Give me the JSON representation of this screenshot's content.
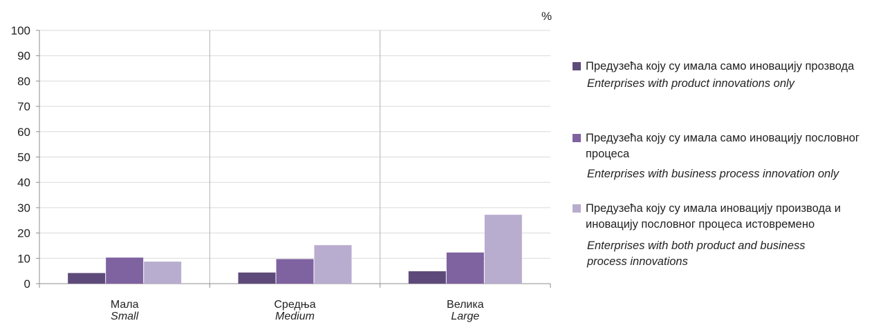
{
  "chart_data": {
    "type": "bar",
    "unit_label": "%",
    "ylim": [
      0,
      100
    ],
    "y_ticks": [
      "0",
      "10",
      "20",
      "30",
      "40",
      "50",
      "60",
      "70",
      "80",
      "90",
      "100"
    ],
    "grid": true,
    "legend_position": "right",
    "categories": [
      {
        "label": "Мала",
        "label_en": "Small"
      },
      {
        "label": "Средња",
        "label_en": "Medium"
      },
      {
        "label": "Велика",
        "label_en": "Large"
      }
    ],
    "series": [
      {
        "name": "Предузећа коју су имала само иновацију прозвода",
        "name_en": "Enterprises with product innovations only",
        "color": "#5e4a7a",
        "values": [
          4.2,
          4.4,
          4.9
        ]
      },
      {
        "name": "Предузећа коју су имала само иновацију пословног процеса",
        "name_en": "Enterprises with business process innovation only",
        "color": "#7f62a0",
        "values": [
          10.3,
          9.7,
          12.3
        ]
      },
      {
        "name": "Предузећа коју су имала иновацију производа и иновацију пословног процеса истовремено",
        "name_en": "Enterprises with both product and business process innovations",
        "color": "#b8adcf",
        "values": [
          8.7,
          15.2,
          27.2
        ]
      }
    ]
  }
}
